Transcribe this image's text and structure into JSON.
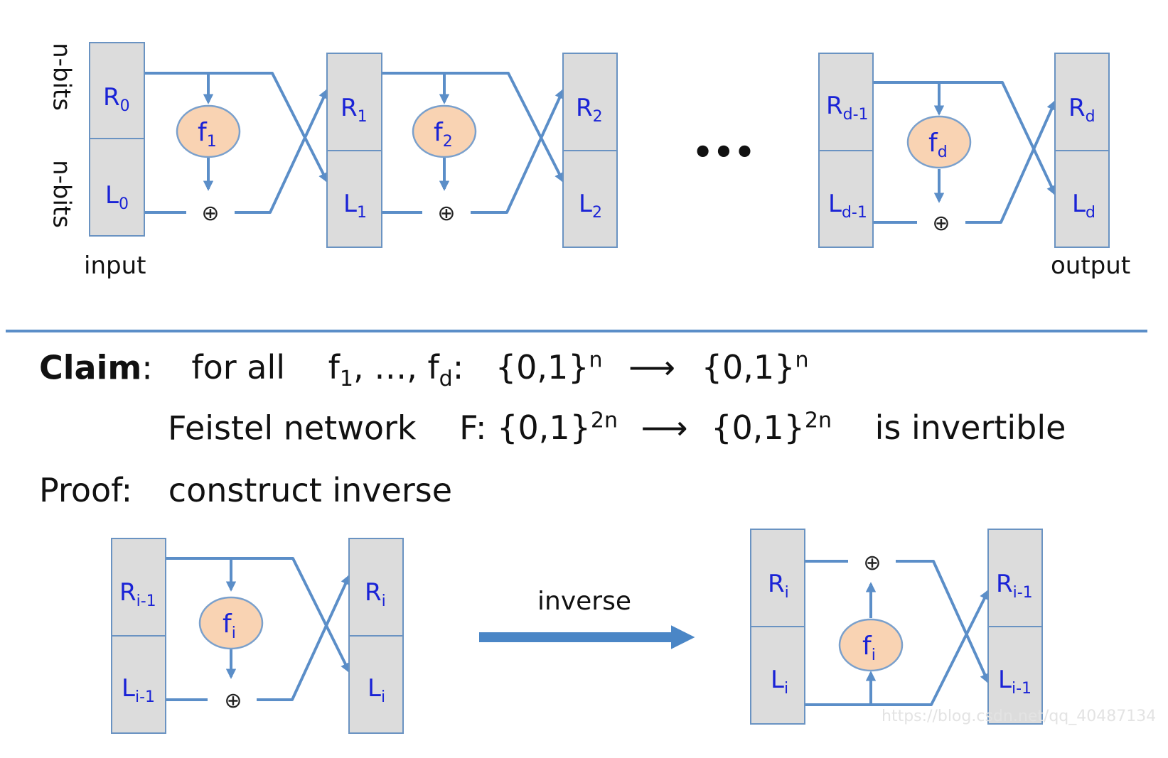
{
  "diagram": {
    "input_label": "input",
    "output_label": "output",
    "side_label": "n-bits",
    "ellipsis": "•••",
    "xor": "⊕",
    "registers": {
      "R0": [
        "R",
        "0"
      ],
      "L0": [
        "L",
        "0"
      ],
      "R1": [
        "R",
        "1"
      ],
      "L1": [
        "L",
        "1"
      ],
      "R2": [
        "R",
        "2"
      ],
      "L2": [
        "L",
        "2"
      ],
      "Rd1": [
        "R",
        "d-1"
      ],
      "Ld1": [
        "L",
        "d-1"
      ],
      "Rd": [
        "R",
        "d"
      ],
      "Ld": [
        "L",
        "d"
      ],
      "Ri1": [
        "R",
        "i-1"
      ],
      "Li1": [
        "L",
        "i-1"
      ],
      "Ri": [
        "R",
        "i"
      ],
      "Li": [
        "L",
        "i"
      ]
    },
    "functions": {
      "f1": [
        "f",
        "1"
      ],
      "f2": [
        "f",
        "2"
      ],
      "fd": [
        "f",
        "d"
      ],
      "fi": [
        "f",
        "i"
      ]
    },
    "inverse_label": "inverse"
  },
  "text": {
    "claim_word": "Claim",
    "claim_colon": ":",
    "claim_for_all": "for all",
    "claim_f1": "f",
    "claim_f1_sub": "1",
    "claim_ellipsis": ", …, f",
    "claim_fd_sub": "d",
    "claim_domain_colon": ":",
    "claim_set1": "{0,1}",
    "claim_sup_n": "n",
    "claim_arrow": "⟶",
    "claim_set2": "{0,1}",
    "claim_sup_n2": "n",
    "line2_feistel": "Feistel network",
    "line2_F": "F: {0,1}",
    "line2_sup1": "2n",
    "line2_arrow": "⟶",
    "line2_set": "{0,1}",
    "line2_sup2": "2n",
    "line2_invertible": "is invertible",
    "proof_word": "Proof:",
    "proof_text": "construct inverse"
  },
  "watermark": "https://blog.csdn.net/qq_40487134"
}
